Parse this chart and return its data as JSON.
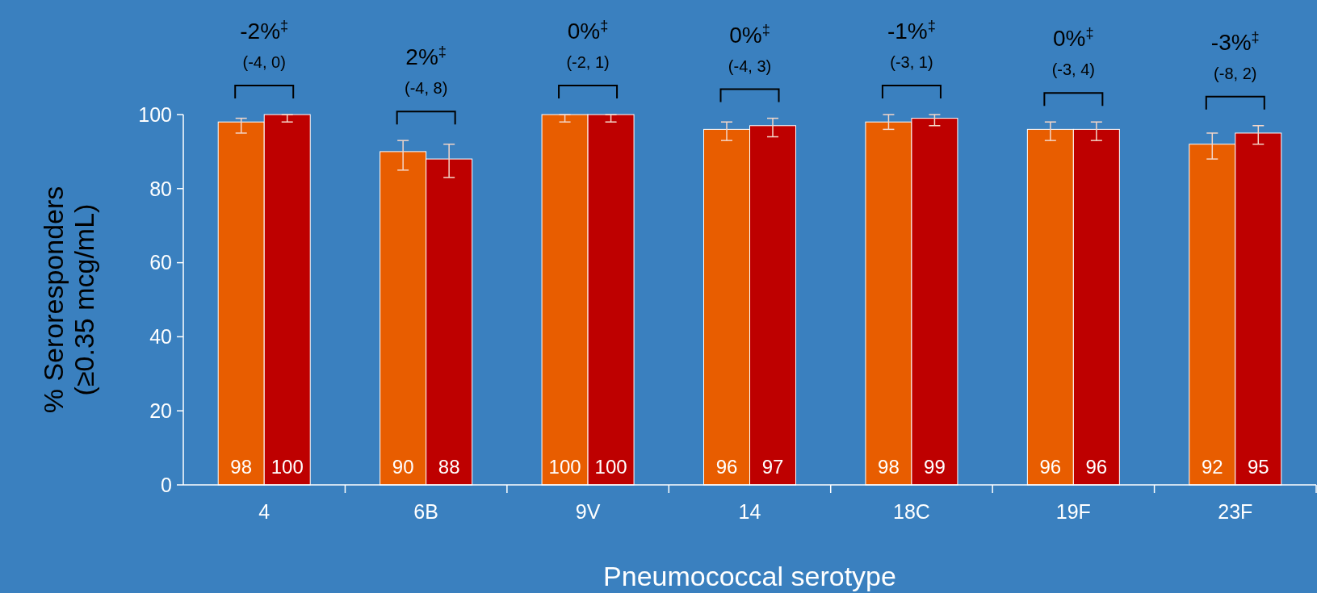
{
  "chart_data": {
    "type": "bar",
    "xlabel": "Pneumococcal serotype",
    "ylabel": "% Seroresponders\n(≥0.35 mcg/mL)",
    "categories": [
      "4",
      "6B",
      "9V",
      "14",
      "18C",
      "19F",
      "23F"
    ],
    "series": [
      {
        "color": "#e85d00",
        "values": [
          98,
          90,
          100,
          96,
          98,
          96,
          92
        ],
        "errors": [
          [
            95,
            99
          ],
          [
            85,
            93
          ],
          [
            98,
            100
          ],
          [
            93,
            98
          ],
          [
            96,
            100
          ],
          [
            93,
            98
          ],
          [
            88,
            95
          ]
        ]
      },
      {
        "color": "#be0000",
        "values": [
          100,
          88,
          100,
          97,
          99,
          96,
          95
        ],
        "errors": [
          [
            98,
            100
          ],
          [
            83,
            92
          ],
          [
            98,
            100
          ],
          [
            94,
            99
          ],
          [
            97,
            100
          ],
          [
            93,
            98
          ],
          [
            92,
            97
          ]
        ]
      }
    ],
    "ylim": [
      0,
      100
    ],
    "yticks": [
      0,
      20,
      40,
      60,
      80,
      100
    ],
    "data_labels": true,
    "grid": false,
    "annotations": [
      "-2%$^{‡}$",
      "(-4, 0)",
      "2%$^{‡}$",
      "(-4, 8)",
      "0%$^{‡}$",
      "(-2, 1)",
      "0%$^{‡}$",
      "(-4, 3)",
      "-1%$^{‡}$",
      "(-3, 1)",
      "0%$^{‡}$",
      "(-3, 4)",
      "-3%$^{‡}$",
      "(-8, 2)"
    ]
  }
}
